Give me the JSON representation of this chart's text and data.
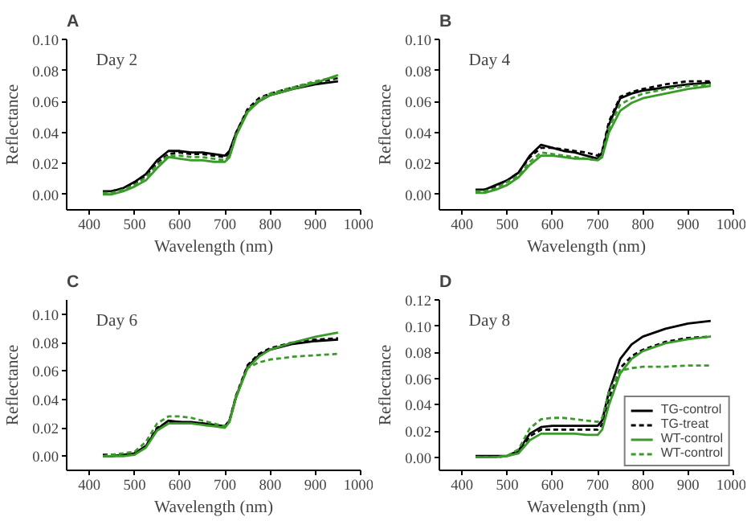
{
  "chart_data": [
    {
      "type": "line",
      "title": "A",
      "xlabel": "Wavelength (nm)",
      "ylabel": "Reflectance",
      "annotations": [
        "Day 2"
      ],
      "x": [
        430,
        450,
        475,
        500,
        525,
        550,
        575,
        600,
        625,
        650,
        675,
        700,
        710,
        725,
        750,
        775,
        800,
        850,
        900,
        950
      ],
      "xlim": [
        350,
        1000
      ],
      "ylim": [
        -0.01,
        0.1
      ],
      "xticks": [
        400,
        500,
        600,
        700,
        800,
        900,
        1000
      ],
      "yticks": [
        {
          "value": 0,
          "label": "0.00"
        },
        {
          "value": 0.02,
          "label": "0.02"
        },
        {
          "value": 0.04,
          "label": "0.04"
        },
        {
          "value": 0.06,
          "label": "0.06"
        },
        {
          "value": 0.08,
          "label": "0.08"
        },
        {
          "value": 0.1,
          "label": "0.10"
        }
      ],
      "series": [
        {
          "color": "#000000",
          "line_style": "solid",
          "values": [
            0.002,
            0.002,
            0.004,
            0.008,
            0.013,
            0.022,
            0.028,
            0.028,
            0.027,
            0.027,
            0.026,
            0.025,
            0.028,
            0.04,
            0.054,
            0.06,
            0.064,
            0.068,
            0.071,
            0.073
          ]
        },
        {
          "color": "#000000",
          "line_style": "dashed",
          "values": [
            0.001,
            0.002,
            0.004,
            0.007,
            0.012,
            0.02,
            0.026,
            0.027,
            0.026,
            0.026,
            0.025,
            0.024,
            0.027,
            0.04,
            0.055,
            0.062,
            0.065,
            0.069,
            0.072,
            0.075
          ]
        },
        {
          "color": "#3a9a2a",
          "line_style": "solid",
          "values": [
            0.0,
            0.0,
            0.002,
            0.005,
            0.009,
            0.017,
            0.024,
            0.023,
            0.022,
            0.022,
            0.021,
            0.021,
            0.024,
            0.038,
            0.053,
            0.06,
            0.064,
            0.068,
            0.072,
            0.077
          ]
        },
        {
          "color": "#3a9a2a",
          "line_style": "dashed",
          "values": [
            0.001,
            0.001,
            0.003,
            0.006,
            0.011,
            0.019,
            0.025,
            0.025,
            0.024,
            0.024,
            0.023,
            0.022,
            0.025,
            0.039,
            0.054,
            0.061,
            0.065,
            0.069,
            0.073,
            0.076
          ]
        }
      ]
    },
    {
      "type": "line",
      "title": "B",
      "xlabel": "Wavelength (nm)",
      "ylabel": "Reflectance",
      "annotations": [
        "Day 4"
      ],
      "x": [
        430,
        450,
        475,
        500,
        525,
        550,
        575,
        600,
        625,
        650,
        675,
        700,
        710,
        725,
        750,
        775,
        800,
        850,
        900,
        950
      ],
      "xlim": [
        350,
        1000
      ],
      "ylim": [
        -0.01,
        0.1
      ],
      "xticks": [
        400,
        500,
        600,
        700,
        800,
        900,
        1000
      ],
      "yticks": [
        {
          "value": 0,
          "label": "0.00"
        },
        {
          "value": 0.02,
          "label": "0.02"
        },
        {
          "value": 0.04,
          "label": "0.04"
        },
        {
          "value": 0.06,
          "label": "0.06"
        },
        {
          "value": 0.08,
          "label": "0.08"
        },
        {
          "value": 0.1,
          "label": "0.10"
        }
      ],
      "series": [
        {
          "color": "#000000",
          "line_style": "solid",
          "values": [
            0.003,
            0.003,
            0.006,
            0.009,
            0.014,
            0.025,
            0.032,
            0.03,
            0.028,
            0.027,
            0.025,
            0.023,
            0.027,
            0.045,
            0.062,
            0.065,
            0.067,
            0.069,
            0.071,
            0.072
          ]
        },
        {
          "color": "#000000",
          "line_style": "dashed",
          "values": [
            0.002,
            0.003,
            0.005,
            0.009,
            0.014,
            0.024,
            0.03,
            0.03,
            0.029,
            0.028,
            0.027,
            0.025,
            0.028,
            0.047,
            0.063,
            0.066,
            0.068,
            0.071,
            0.073,
            0.073
          ]
        },
        {
          "color": "#3a9a2a",
          "line_style": "solid",
          "values": [
            0.001,
            0.001,
            0.003,
            0.006,
            0.011,
            0.019,
            0.025,
            0.025,
            0.024,
            0.023,
            0.023,
            0.022,
            0.024,
            0.04,
            0.054,
            0.059,
            0.062,
            0.065,
            0.068,
            0.07
          ]
        },
        {
          "color": "#3a9a2a",
          "line_style": "dashed",
          "values": [
            0.002,
            0.002,
            0.004,
            0.008,
            0.012,
            0.021,
            0.027,
            0.026,
            0.025,
            0.024,
            0.023,
            0.022,
            0.025,
            0.043,
            0.058,
            0.062,
            0.065,
            0.068,
            0.07,
            0.071
          ]
        }
      ]
    },
    {
      "type": "line",
      "title": "C",
      "xlabel": "Wavelength (nm)",
      "ylabel": "Reflectance",
      "annotations": [
        "Day 6"
      ],
      "x": [
        430,
        450,
        475,
        500,
        525,
        550,
        575,
        600,
        625,
        650,
        675,
        700,
        710,
        725,
        750,
        775,
        800,
        850,
        900,
        950
      ],
      "xlim": [
        350,
        1000
      ],
      "ylim": [
        -0.01,
        0.11
      ],
      "xticks": [
        400,
        500,
        600,
        700,
        800,
        900,
        1000
      ],
      "yticks": [
        {
          "value": 0,
          "label": "0.00"
        },
        {
          "value": 0.02,
          "label": "0.02"
        },
        {
          "value": 0.04,
          "label": "0.04"
        },
        {
          "value": 0.06,
          "label": "0.06"
        },
        {
          "value": 0.08,
          "label": "0.08"
        },
        {
          "value": 0.1,
          "label": "0.10"
        }
      ],
      "series": [
        {
          "color": "#000000",
          "line_style": "solid",
          "values": [
            0.0,
            0.0,
            0.001,
            0.002,
            0.007,
            0.019,
            0.025,
            0.024,
            0.024,
            0.023,
            0.022,
            0.021,
            0.025,
            0.042,
            0.063,
            0.071,
            0.075,
            0.079,
            0.081,
            0.082
          ]
        },
        {
          "color": "#000000",
          "line_style": "dashed",
          "values": [
            0.001,
            0.001,
            0.001,
            0.002,
            0.007,
            0.02,
            0.024,
            0.024,
            0.023,
            0.023,
            0.022,
            0.021,
            0.025,
            0.043,
            0.064,
            0.072,
            0.076,
            0.08,
            0.082,
            0.083
          ]
        },
        {
          "color": "#3a9a2a",
          "line_style": "solid",
          "values": [
            0.0,
            0.0,
            0.0,
            0.001,
            0.006,
            0.018,
            0.023,
            0.023,
            0.023,
            0.022,
            0.021,
            0.02,
            0.024,
            0.042,
            0.062,
            0.07,
            0.075,
            0.08,
            0.084,
            0.087
          ]
        },
        {
          "color": "#3a9a2a",
          "line_style": "dashed",
          "values": [
            0.0,
            0.001,
            0.002,
            0.003,
            0.01,
            0.023,
            0.028,
            0.028,
            0.027,
            0.025,
            0.023,
            0.021,
            0.025,
            0.043,
            0.062,
            0.066,
            0.068,
            0.07,
            0.071,
            0.072
          ]
        }
      ]
    },
    {
      "type": "line",
      "title": "D",
      "xlabel": "Wavelength (nm)",
      "ylabel": "Reflectance",
      "annotations": [
        "Day 8"
      ],
      "legend": "bottom right",
      "x": [
        430,
        450,
        475,
        500,
        525,
        550,
        575,
        600,
        625,
        650,
        675,
        700,
        710,
        725,
        750,
        775,
        800,
        850,
        900,
        950
      ],
      "xlim": [
        350,
        1000
      ],
      "ylim": [
        -0.01,
        0.12
      ],
      "xticks": [
        400,
        500,
        600,
        700,
        800,
        900,
        1000
      ],
      "yticks": [
        {
          "value": 0,
          "label": "0.00"
        },
        {
          "value": 0.02,
          "label": "0.02"
        },
        {
          "value": 0.04,
          "label": "0.04"
        },
        {
          "value": 0.06,
          "label": "0.06"
        },
        {
          "value": 0.08,
          "label": "0.08"
        },
        {
          "value": 0.1,
          "label": "0.10"
        },
        {
          "value": 0.12,
          "label": "0.12"
        }
      ],
      "series": [
        {
          "name": "TG-control",
          "color": "#000000",
          "line_style": "solid",
          "values": [
            0.001,
            0.001,
            0.001,
            0.001,
            0.005,
            0.018,
            0.023,
            0.024,
            0.024,
            0.024,
            0.024,
            0.024,
            0.028,
            0.05,
            0.075,
            0.086,
            0.092,
            0.098,
            0.102,
            0.104
          ]
        },
        {
          "name": "TG-treat",
          "color": "#000000",
          "line_style": "dashed",
          "values": [
            0.0,
            0.0,
            0.0,
            0.001,
            0.004,
            0.016,
            0.021,
            0.021,
            0.021,
            0.021,
            0.021,
            0.021,
            0.025,
            0.045,
            0.068,
            0.077,
            0.082,
            0.088,
            0.091,
            0.092
          ]
        },
        {
          "name": "WT-control",
          "color": "#3a9a2a",
          "line_style": "solid",
          "values": [
            0.0,
            0.0,
            0.0,
            0.001,
            0.003,
            0.013,
            0.018,
            0.018,
            0.018,
            0.018,
            0.017,
            0.017,
            0.021,
            0.04,
            0.064,
            0.075,
            0.081,
            0.087,
            0.09,
            0.092
          ]
        },
        {
          "name": "WT-control",
          "color": "#3a9a2a",
          "line_style": "dashed",
          "values": [
            0.0,
            0.0,
            0.0,
            0.001,
            0.006,
            0.022,
            0.029,
            0.03,
            0.03,
            0.029,
            0.028,
            0.027,
            0.03,
            0.05,
            0.066,
            0.068,
            0.069,
            0.069,
            0.07,
            0.07
          ]
        }
      ]
    }
  ]
}
